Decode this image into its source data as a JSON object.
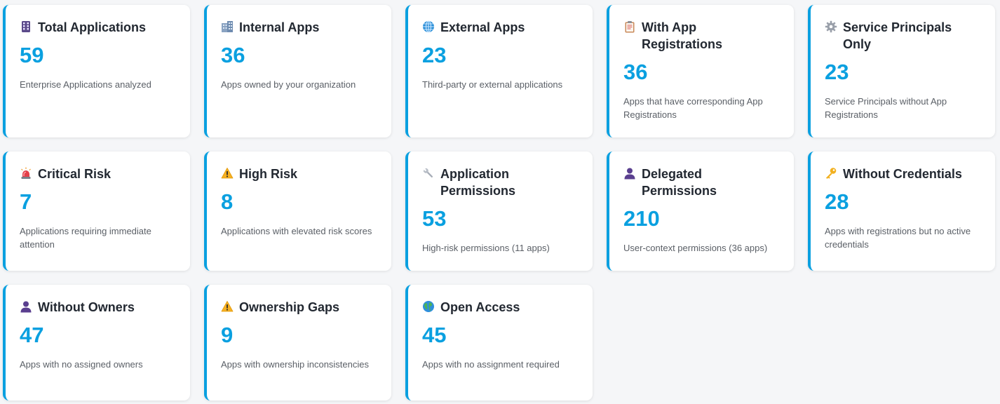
{
  "cards": [
    {
      "icon": "building-icon",
      "title": "Total Applications",
      "value": "59",
      "desc": "Enterprise Applications analyzed"
    },
    {
      "icon": "office-icon",
      "title": "Internal Apps",
      "value": "36",
      "desc": "Apps owned by your organization"
    },
    {
      "icon": "globe-icon",
      "title": "External Apps",
      "value": "23",
      "desc": "Third-party or external applications"
    },
    {
      "icon": "clipboard-icon",
      "title": "With App Registrations",
      "value": "36",
      "desc": "Apps that have corresponding App Registrations"
    },
    {
      "icon": "gear-icon",
      "title": "Service Principals Only",
      "value": "23",
      "desc": "Service Principals without App Registrations"
    },
    {
      "icon": "siren-icon",
      "title": "Critical Risk",
      "value": "7",
      "desc": "Applications requiring immediate attention"
    },
    {
      "icon": "warning-icon",
      "title": "High Risk",
      "value": "8",
      "desc": "Applications with elevated risk scores"
    },
    {
      "icon": "wrench-icon",
      "title": "Application Permissions",
      "value": "53",
      "desc": "High-risk permissions (11 apps)"
    },
    {
      "icon": "user-icon",
      "title": "Delegated Permissions",
      "value": "210",
      "desc": "User-context permissions (36 apps)"
    },
    {
      "icon": "key-icon",
      "title": "Without Credentials",
      "value": "28",
      "desc": "Apps with registrations but no active credentials"
    },
    {
      "icon": "user-icon",
      "title": "Without Owners",
      "value": "47",
      "desc": "Apps with no assigned owners"
    },
    {
      "icon": "warning-icon",
      "title": "Ownership Gaps",
      "value": "9",
      "desc": "Apps with ownership inconsistencies"
    },
    {
      "icon": "earth-icon",
      "title": "Open Access",
      "value": "45",
      "desc": "Apps with no assignment required"
    }
  ],
  "colors": {
    "accent": "#0aa0e0",
    "title": "#222831",
    "desc": "#5a5f66"
  }
}
